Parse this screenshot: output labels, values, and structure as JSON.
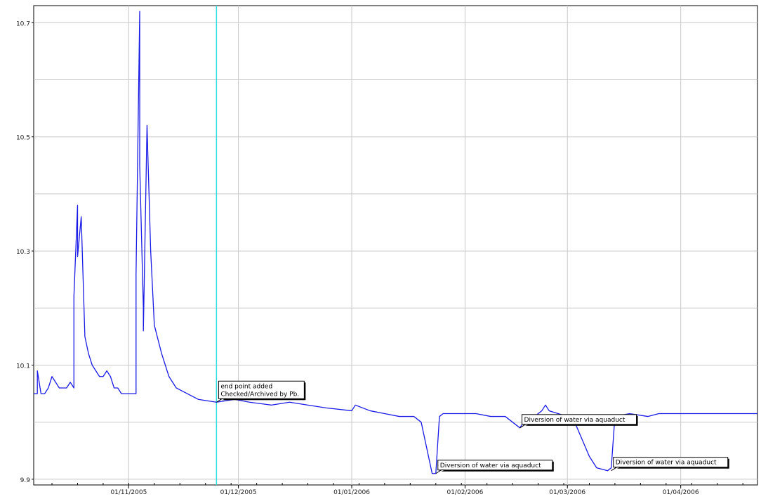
{
  "chart_data": {
    "type": "line",
    "title": "",
    "xlabel": "",
    "ylabel": "",
    "grid": true,
    "y_ticks": [
      9.9,
      10.1,
      10.3,
      10.5,
      10.7
    ],
    "y_tick_labels": [
      "9.9",
      "10.1",
      "10.3",
      "10.5",
      "10.7"
    ],
    "ylim": [
      9.89,
      10.73
    ],
    "x_ticks": [
      "2005-11-01",
      "2005-12-01",
      "2006-01-01",
      "2006-02-01",
      "2006-03-01",
      "2006-04-01"
    ],
    "x_tick_labels": [
      "01/11/2005",
      "01/12/2005",
      "01/01/2006",
      "01/02/2006",
      "01/03/2006",
      "01/04/2006"
    ],
    "xlim": [
      "2005-10-06",
      "2006-04-22"
    ],
    "cursor_date": "2005-11-25",
    "colors": {
      "series": "#1a1ae6",
      "cursor": "#33dddd",
      "grid": "#c8c8c8"
    },
    "series": [
      {
        "values": [
          [
            "2005-10-06",
            10.05
          ],
          [
            "2005-10-07",
            10.05
          ],
          [
            "2005-10-07",
            10.09
          ],
          [
            "2005-10-08",
            10.05
          ],
          [
            "2005-10-09",
            10.05
          ],
          [
            "2005-10-10",
            10.06
          ],
          [
            "2005-10-11",
            10.08
          ],
          [
            "2005-10-12",
            10.07
          ],
          [
            "2005-10-13",
            10.06
          ],
          [
            "2005-10-15",
            10.06
          ],
          [
            "2005-10-16",
            10.07
          ],
          [
            "2005-10-17",
            10.06
          ],
          [
            "2005-10-17",
            10.22
          ],
          [
            "2005-10-18",
            10.38
          ],
          [
            "2005-10-18",
            10.29
          ],
          [
            "2005-10-19",
            10.36
          ],
          [
            "2005-10-20",
            10.15
          ],
          [
            "2005-10-21",
            10.12
          ],
          [
            "2005-10-22",
            10.1
          ],
          [
            "2005-10-24",
            10.08
          ],
          [
            "2005-10-25",
            10.08
          ],
          [
            "2005-10-26",
            10.09
          ],
          [
            "2005-10-27",
            10.08
          ],
          [
            "2005-10-28",
            10.06
          ],
          [
            "2005-10-29",
            10.06
          ],
          [
            "2005-10-30",
            10.05
          ],
          [
            "2005-11-01",
            10.05
          ],
          [
            "2005-11-02",
            10.05
          ],
          [
            "2005-11-03",
            10.05
          ],
          [
            "2005-11-03",
            10.26
          ],
          [
            "2005-11-04",
            10.72
          ],
          [
            "2005-11-04",
            10.45
          ],
          [
            "2005-11-05",
            10.2
          ],
          [
            "2005-11-05",
            10.16
          ],
          [
            "2005-11-06",
            10.52
          ],
          [
            "2005-11-07",
            10.3
          ],
          [
            "2005-11-08",
            10.17
          ],
          [
            "2005-11-10",
            10.12
          ],
          [
            "2005-11-12",
            10.08
          ],
          [
            "2005-11-14",
            10.06
          ],
          [
            "2005-11-17",
            10.05
          ],
          [
            "2005-11-20",
            10.04
          ],
          [
            "2005-11-25",
            10.035
          ],
          [
            "2005-11-30",
            10.04
          ],
          [
            "2005-12-04",
            10.035
          ],
          [
            "2005-12-10",
            10.03
          ],
          [
            "2005-12-15",
            10.035
          ],
          [
            "2005-12-20",
            10.03
          ],
          [
            "2005-12-25",
            10.025
          ],
          [
            "2006-01-01",
            10.02
          ],
          [
            "2006-01-02",
            10.03
          ],
          [
            "2006-01-06",
            10.02
          ],
          [
            "2006-01-10",
            10.015
          ],
          [
            "2006-01-14",
            10.01
          ],
          [
            "2006-01-18",
            10.01
          ],
          [
            "2006-01-20",
            10.0
          ],
          [
            "2006-01-21",
            9.97
          ],
          [
            "2006-01-22",
            9.94
          ],
          [
            "2006-01-23",
            9.91
          ],
          [
            "2006-01-24",
            9.91
          ],
          [
            "2006-01-25",
            10.01
          ],
          [
            "2006-01-26",
            10.015
          ],
          [
            "2006-01-30",
            10.015
          ],
          [
            "2006-02-04",
            10.015
          ],
          [
            "2006-02-08",
            10.01
          ],
          [
            "2006-02-12",
            10.01
          ],
          [
            "2006-02-14",
            10.0
          ],
          [
            "2006-02-16",
            9.99
          ],
          [
            "2006-02-17",
            10.0
          ],
          [
            "2006-02-20",
            10.01
          ],
          [
            "2006-02-22",
            10.02
          ],
          [
            "2006-02-23",
            10.03
          ],
          [
            "2006-02-24",
            10.02
          ],
          [
            "2006-03-01",
            10.01
          ],
          [
            "2006-03-03",
            10.0
          ],
          [
            "2006-03-05",
            9.97
          ],
          [
            "2006-03-07",
            9.94
          ],
          [
            "2006-03-09",
            9.92
          ],
          [
            "2006-03-12",
            9.915
          ],
          [
            "2006-03-13",
            9.92
          ],
          [
            "2006-03-14",
            10.01
          ],
          [
            "2006-03-18",
            10.015
          ],
          [
            "2006-03-23",
            10.01
          ],
          [
            "2006-03-26",
            10.015
          ],
          [
            "2006-04-01",
            10.015
          ],
          [
            "2006-04-10",
            10.015
          ],
          [
            "2006-04-22",
            10.015
          ]
        ]
      }
    ],
    "annotations": [
      {
        "date": "2005-11-25",
        "y": 10.035,
        "lines": [
          "end point added",
          "Checked/Archived by Pb."
        ]
      },
      {
        "date": "2006-01-24",
        "y": 9.91,
        "lines": [
          "Diversion of water via aquaduct"
        ]
      },
      {
        "date": "2006-02-16",
        "y": 9.99,
        "lines": [
          "Diversion of water via aquaduct"
        ]
      },
      {
        "date": "2006-03-13",
        "y": 9.915,
        "lines": [
          "Diversion of water via aquaduct"
        ]
      }
    ]
  }
}
